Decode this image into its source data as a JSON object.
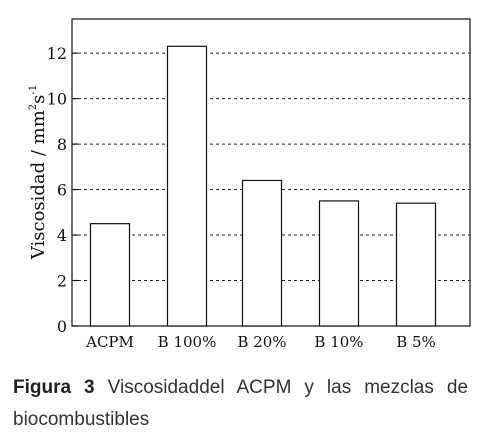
{
  "chart_data": {
    "type": "bar",
    "categories": [
      "ACPM",
      "B 100%",
      "B 20%",
      "B 10%",
      "B 5%"
    ],
    "values": [
      4.5,
      12.3,
      6.4,
      5.5,
      5.4
    ],
    "ylabel": "Viscosidad / mm",
    "ylabel_unit_sup1": "2",
    "ylabel_unit_mid": "s",
    "ylabel_unit_sup2": "-1",
    "ylim": [
      0,
      13.5
    ],
    "yticks": [
      0,
      2,
      4,
      6,
      8,
      10,
      12
    ],
    "grid": "horizontal dashed",
    "legend": "none"
  },
  "caption": {
    "label": "Figura 3",
    "text": "Viscosidaddel ACPM y las mezclas de biocombustibles"
  }
}
